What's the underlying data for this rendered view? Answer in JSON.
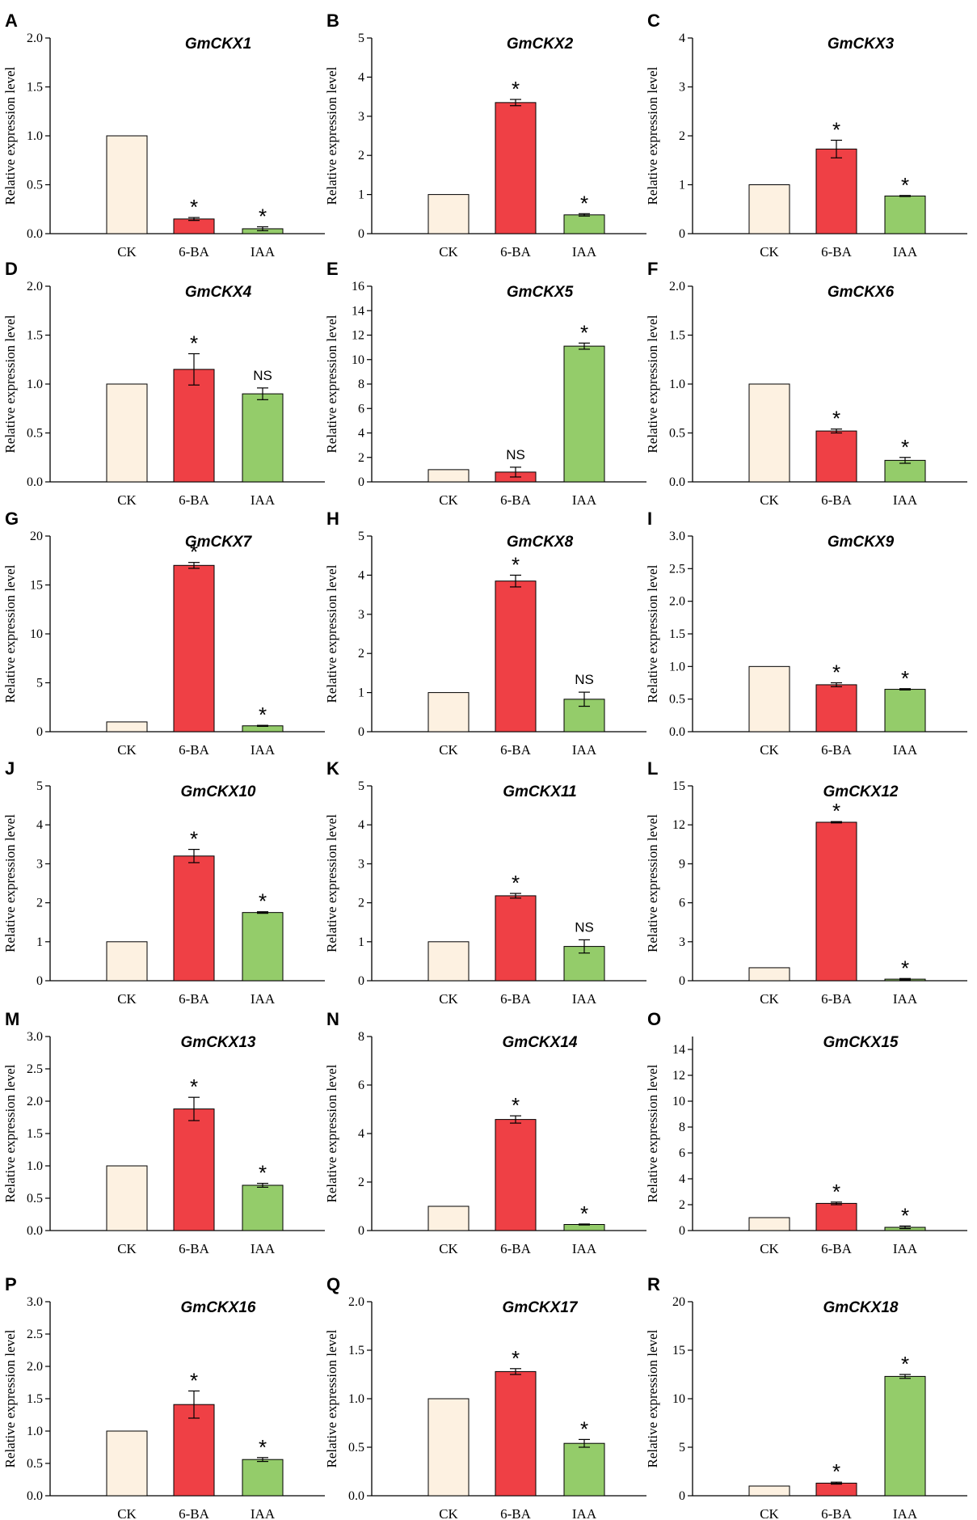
{
  "colors": {
    "CK": "#fdf1e1",
    "6-BA": "#ef4045",
    "IAA": "#94cc6a",
    "stroke": "#000000"
  },
  "chart_data": [
    {
      "type": "bar",
      "panel": "A",
      "title": "GmCKX1",
      "ylabel": "Relative expression level",
      "categories": [
        "CK",
        "6-BA",
        "IAA"
      ],
      "values": [
        1.0,
        0.15,
        0.05
      ],
      "errors": [
        0,
        0.015,
        0.02
      ],
      "significance": [
        "",
        "*",
        "*"
      ],
      "ylim": [
        0,
        2.0
      ],
      "yticks": [
        0.0,
        0.5,
        1.0,
        1.5,
        2.0
      ],
      "ytick_labels": [
        "0.0",
        "0.5",
        "1.0",
        "1.5",
        "2.0"
      ]
    },
    {
      "type": "bar",
      "panel": "B",
      "title": "GmCKX2",
      "ylabel": "Relative expression level",
      "categories": [
        "CK",
        "6-BA",
        "IAA"
      ],
      "values": [
        1.0,
        3.35,
        0.48
      ],
      "errors": [
        0,
        0.08,
        0.03
      ],
      "significance": [
        "",
        "*",
        "*"
      ],
      "ylim": [
        0,
        5
      ],
      "yticks": [
        0,
        1,
        2,
        3,
        4,
        5
      ],
      "ytick_labels": [
        "0",
        "1",
        "2",
        "3",
        "4",
        "5"
      ]
    },
    {
      "type": "bar",
      "panel": "C",
      "title": "GmCKX3",
      "ylabel": "Relative expression level",
      "categories": [
        "CK",
        "6-BA",
        "IAA"
      ],
      "values": [
        1.0,
        1.73,
        0.77
      ],
      "errors": [
        0,
        0.18,
        0.01
      ],
      "significance": [
        "",
        "*",
        "*"
      ],
      "ylim": [
        0,
        4
      ],
      "yticks": [
        0,
        1,
        2,
        3,
        4
      ],
      "ytick_labels": [
        "0",
        "1",
        "2",
        "3",
        "4"
      ]
    },
    {
      "type": "bar",
      "panel": "D",
      "title": "GmCKX4",
      "ylabel": "Relative expression level",
      "categories": [
        "CK",
        "6-BA",
        "IAA"
      ],
      "values": [
        1.0,
        1.15,
        0.9
      ],
      "errors": [
        0,
        0.16,
        0.06
      ],
      "significance": [
        "",
        "*",
        "NS"
      ],
      "ylim": [
        0,
        2.0
      ],
      "yticks": [
        0.0,
        0.5,
        1.0,
        1.5,
        2.0
      ],
      "ytick_labels": [
        "0.0",
        "0.5",
        "1.0",
        "1.5",
        "2.0"
      ]
    },
    {
      "type": "bar",
      "panel": "E",
      "title": "GmCKX5",
      "ylabel": "Relative expression level",
      "categories": [
        "CK",
        "6-BA",
        "IAA"
      ],
      "values": [
        1.0,
        0.8,
        11.1
      ],
      "errors": [
        0,
        0.4,
        0.25
      ],
      "significance": [
        "",
        "NS",
        "*"
      ],
      "ylim": [
        0,
        16
      ],
      "yticks": [
        0,
        2,
        4,
        6,
        8,
        10,
        12,
        14,
        16
      ],
      "ytick_labels": [
        "0",
        "2",
        "4",
        "6",
        "8",
        "10",
        "12",
        "14",
        "16"
      ]
    },
    {
      "type": "bar",
      "panel": "F",
      "title": "GmCKX6",
      "ylabel": "Relative expression level",
      "categories": [
        "CK",
        "6-BA",
        "IAA"
      ],
      "values": [
        1.0,
        0.52,
        0.22
      ],
      "errors": [
        0,
        0.02,
        0.03
      ],
      "significance": [
        "",
        "*",
        "*"
      ],
      "ylim": [
        0,
        2.0
      ],
      "yticks": [
        0.0,
        0.5,
        1.0,
        1.5,
        2.0
      ],
      "ytick_labels": [
        "0.0",
        "0.5",
        "1.0",
        "1.5",
        "2.0"
      ]
    },
    {
      "type": "bar",
      "panel": "G",
      "title": "GmCKX7",
      "ylabel": "Relative expression level",
      "categories": [
        "CK",
        "6-BA",
        "IAA"
      ],
      "values": [
        1.0,
        17.0,
        0.6
      ],
      "errors": [
        0,
        0.3,
        0.05
      ],
      "significance": [
        "",
        "*",
        "*"
      ],
      "ylim": [
        0,
        20
      ],
      "yticks": [
        0,
        5,
        10,
        15,
        20
      ],
      "ytick_labels": [
        "0",
        "5",
        "10",
        "15",
        "20"
      ]
    },
    {
      "type": "bar",
      "panel": "H",
      "title": "GmCKX8",
      "ylabel": "Relative expression level",
      "categories": [
        "CK",
        "6-BA",
        "IAA"
      ],
      "values": [
        1.0,
        3.85,
        0.83
      ],
      "errors": [
        0,
        0.15,
        0.18
      ],
      "significance": [
        "",
        "*",
        "NS"
      ],
      "ylim": [
        0,
        5
      ],
      "yticks": [
        0,
        1,
        2,
        3,
        4,
        5
      ],
      "ytick_labels": [
        "0",
        "1",
        "2",
        "3",
        "4",
        "5"
      ]
    },
    {
      "type": "bar",
      "panel": "I",
      "title": "GmCKX9",
      "ylabel": "Relative expression level",
      "categories": [
        "CK",
        "6-BA",
        "IAA"
      ],
      "values": [
        1.0,
        0.72,
        0.65
      ],
      "errors": [
        0,
        0.03,
        0.01
      ],
      "significance": [
        "",
        "*",
        "*"
      ],
      "ylim": [
        0,
        3.0
      ],
      "yticks": [
        0.0,
        0.5,
        1.0,
        1.5,
        2.0,
        2.5,
        3.0
      ],
      "ytick_labels": [
        "0.0",
        "0.5",
        "1.0",
        "1.5",
        "2.0",
        "2.5",
        "3.0"
      ]
    },
    {
      "type": "bar",
      "panel": "J",
      "title": "GmCKX10",
      "ylabel": "Relative expression level",
      "categories": [
        "CK",
        "6-BA",
        "IAA"
      ],
      "values": [
        1.0,
        3.2,
        1.75
      ],
      "errors": [
        0,
        0.17,
        0.02
      ],
      "significance": [
        "",
        "*",
        "*"
      ],
      "ylim": [
        0,
        5
      ],
      "yticks": [
        0,
        1,
        2,
        3,
        4,
        5
      ],
      "ytick_labels": [
        "0",
        "1",
        "2",
        "3",
        "4",
        "5"
      ]
    },
    {
      "type": "bar",
      "panel": "K",
      "title": "GmCKX11",
      "ylabel": "Relative expression level",
      "categories": [
        "CK",
        "6-BA",
        "IAA"
      ],
      "values": [
        1.0,
        2.18,
        0.88
      ],
      "errors": [
        0,
        0.06,
        0.17
      ],
      "significance": [
        "",
        "*",
        "NS"
      ],
      "ylim": [
        0,
        5
      ],
      "yticks": [
        0,
        1,
        2,
        3,
        4,
        5
      ],
      "ytick_labels": [
        "0",
        "1",
        "2",
        "3",
        "4",
        "5"
      ]
    },
    {
      "type": "bar",
      "panel": "L",
      "title": "GmCKX12",
      "ylabel": "Relative expression level",
      "categories": [
        "CK",
        "6-BA",
        "IAA"
      ],
      "values": [
        1.0,
        12.2,
        0.12
      ],
      "errors": [
        0,
        0.05,
        0.05
      ],
      "significance": [
        "",
        "*",
        "*"
      ],
      "ylim": [
        0,
        15
      ],
      "yticks": [
        0,
        3,
        6,
        9,
        12,
        15
      ],
      "ytick_labels": [
        "0",
        "3",
        "6",
        "9",
        "12",
        "15"
      ]
    },
    {
      "type": "bar",
      "panel": "M",
      "title": "GmCKX13",
      "ylabel": "Relative expression level",
      "categories": [
        "CK",
        "6-BA",
        "IAA"
      ],
      "values": [
        1.0,
        1.88,
        0.7
      ],
      "errors": [
        0,
        0.18,
        0.03
      ],
      "significance": [
        "",
        "*",
        "*"
      ],
      "ylim": [
        0,
        3.0
      ],
      "yticks": [
        0.0,
        0.5,
        1.0,
        1.5,
        2.0,
        2.5,
        3.0
      ],
      "ytick_labels": [
        "0.0",
        "0.5",
        "1.0",
        "1.5",
        "2.0",
        "2.5",
        "3.0"
      ]
    },
    {
      "type": "bar",
      "panel": "N",
      "title": "GmCKX14",
      "ylabel": "Relative expression level",
      "categories": [
        "CK",
        "6-BA",
        "IAA"
      ],
      "values": [
        1.0,
        4.58,
        0.25
      ],
      "errors": [
        0,
        0.15,
        0.02
      ],
      "significance": [
        "",
        "*",
        "*"
      ],
      "ylim": [
        0,
        8
      ],
      "yticks": [
        0,
        2,
        4,
        6,
        8
      ],
      "ytick_labels": [
        "0",
        "2",
        "4",
        "6",
        "8"
      ]
    },
    {
      "type": "bar",
      "panel": "O",
      "title": "GmCKX15",
      "ylabel": "Relative expression level",
      "categories": [
        "CK",
        "6-BA",
        "IAA"
      ],
      "values": [
        1.0,
        2.1,
        0.25
      ],
      "errors": [
        0,
        0.1,
        0.1
      ],
      "significance": [
        "",
        "*",
        "*"
      ],
      "ylim": [
        0,
        15
      ],
      "yticks": [
        0,
        2,
        4,
        6,
        8,
        10,
        12,
        14
      ],
      "ytick_labels": [
        "0",
        "2",
        "4",
        "6",
        "8",
        "10",
        "12",
        "14"
      ]
    },
    {
      "type": "bar",
      "panel": "P",
      "title": "GmCKX16",
      "ylabel": "Relative expression level",
      "categories": [
        "CK",
        "6-BA",
        "IAA"
      ],
      "values": [
        1.0,
        1.41,
        0.56
      ],
      "errors": [
        0,
        0.21,
        0.03
      ],
      "significance": [
        "",
        "*",
        "*"
      ],
      "ylim": [
        0,
        3.0
      ],
      "yticks": [
        0.0,
        0.5,
        1.0,
        1.5,
        2.0,
        2.5,
        3.0
      ],
      "ytick_labels": [
        "0.0",
        "0.5",
        "1.0",
        "1.5",
        "2.0",
        "2.5",
        "3.0"
      ]
    },
    {
      "type": "bar",
      "panel": "Q",
      "title": "GmCKX17",
      "ylabel": "Relative expression level",
      "categories": [
        "CK",
        "6-BA",
        "IAA"
      ],
      "values": [
        1.0,
        1.28,
        0.54
      ],
      "errors": [
        0,
        0.03,
        0.04
      ],
      "significance": [
        "",
        "*",
        "*"
      ],
      "ylim": [
        0,
        2.0
      ],
      "yticks": [
        0.0,
        0.5,
        1.0,
        1.5,
        2.0
      ],
      "ytick_labels": [
        "0.0",
        "0.5",
        "1.0",
        "1.5",
        "2.0"
      ]
    },
    {
      "type": "bar",
      "panel": "R",
      "title": "GmCKX18",
      "ylabel": "Relative expression level",
      "categories": [
        "CK",
        "6-BA",
        "IAA"
      ],
      "values": [
        1.0,
        1.3,
        12.3
      ],
      "errors": [
        0,
        0.1,
        0.2
      ],
      "significance": [
        "",
        "*",
        "*"
      ],
      "ylim": [
        0,
        20
      ],
      "yticks": [
        0,
        5,
        10,
        15,
        20
      ],
      "ytick_labels": [
        "0",
        "5",
        "10",
        "15",
        "20"
      ]
    }
  ]
}
